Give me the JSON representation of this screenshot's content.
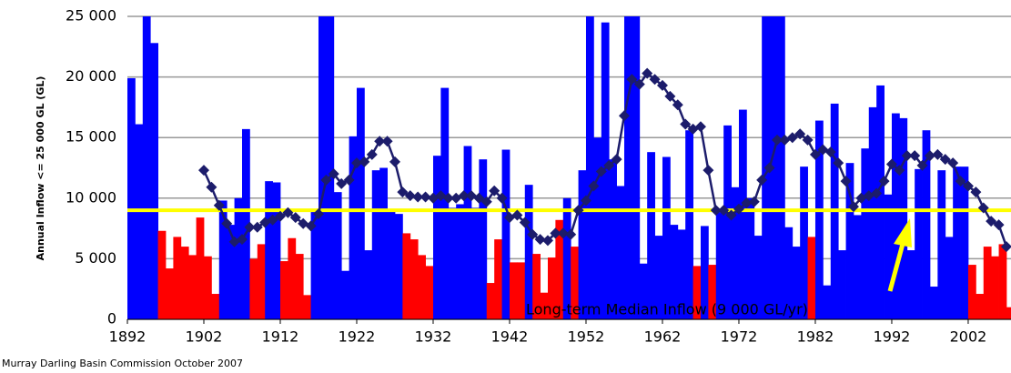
{
  "chart_data": {
    "type": "combo",
    "y_label": "Annual Inflow <= 25 000 GL (GL)",
    "source": "Murray Darling Basin Commission October 2007",
    "median": 9000,
    "median_label": "Long-term Median Inflow (9 000 GL/yr)",
    "median_color": "#ffff00",
    "x": [
      1892,
      1893,
      1894,
      1895,
      1896,
      1897,
      1898,
      1899,
      1900,
      1901,
      1902,
      1903,
      1904,
      1905,
      1906,
      1907,
      1908,
      1909,
      1910,
      1911,
      1912,
      1913,
      1914,
      1915,
      1916,
      1917,
      1918,
      1919,
      1920,
      1921,
      1922,
      1923,
      1924,
      1925,
      1926,
      1927,
      1928,
      1929,
      1930,
      1931,
      1932,
      1933,
      1934,
      1935,
      1936,
      1937,
      1938,
      1939,
      1940,
      1941,
      1942,
      1943,
      1944,
      1945,
      1946,
      1947,
      1948,
      1949,
      1950,
      1951,
      1952,
      1953,
      1954,
      1955,
      1956,
      1957,
      1958,
      1959,
      1960,
      1961,
      1962,
      1963,
      1964,
      1965,
      1966,
      1967,
      1968,
      1969,
      1970,
      1971,
      1972,
      1973,
      1974,
      1975,
      1976,
      1977,
      1978,
      1979,
      1980,
      1981,
      1982,
      1983,
      1984,
      1985,
      1986,
      1987,
      1988,
      1989,
      1990,
      1991,
      1992,
      1993,
      1994,
      1995,
      1996,
      1997,
      1998,
      1999,
      2000,
      2001,
      2002,
      2003,
      2004,
      2005,
      2006,
      2007
    ],
    "series": [
      {
        "type": "bar",
        "values": [
          19900,
          16100,
          25000,
          22800,
          7300,
          4200,
          6800,
          6000,
          5300,
          8400,
          5200,
          2100,
          9800,
          7800,
          10000,
          15700,
          5000,
          6200,
          11400,
          11300,
          4800,
          6700,
          5400,
          2000,
          9000,
          25000,
          25000,
          10500,
          4000,
          15100,
          19100,
          5700,
          12300,
          12500,
          9000,
          8700,
          7100,
          6600,
          5300,
          4400,
          13500,
          19100,
          9200,
          9500,
          14300,
          9200,
          13200,
          3000,
          6600,
          14000,
          4700,
          4700,
          11100,
          5400,
          2200,
          5100,
          8200,
          10000,
          6000,
          12300,
          25000,
          15000,
          24500,
          13200,
          11000,
          25000,
          25000,
          4600,
          13800,
          6900,
          13400,
          7800,
          7400,
          15600,
          4400,
          7700,
          4500,
          9000,
          16000,
          10900,
          17300,
          10000,
          6900,
          25000,
          25000,
          25000,
          7600,
          6000,
          12600,
          6800,
          16400,
          2800,
          17800,
          5700,
          12900,
          8600,
          14100,
          17500,
          19300,
          10300,
          17000,
          16600,
          5700,
          12400,
          15600,
          2700,
          12300,
          6800,
          12600,
          12600,
          4500,
          2100,
          6000,
          5200,
          6200,
          1000
        ],
        "colors": [
          "#0000ff",
          "#0000ff",
          "#0000ff",
          "#0000ff",
          "#ff0000",
          "#ff0000",
          "#ff0000",
          "#ff0000",
          "#ff0000",
          "#ff0000",
          "#ff0000",
          "#ff0000",
          "#0000ff",
          "#0000ff",
          "#0000ff",
          "#0000ff",
          "#ff0000",
          "#ff0000",
          "#0000ff",
          "#0000ff",
          "#ff0000",
          "#ff0000",
          "#ff0000",
          "#ff0000",
          "#0000ff",
          "#0000ff",
          "#0000ff",
          "#0000ff",
          "#0000ff",
          "#0000ff",
          "#0000ff",
          "#0000ff",
          "#0000ff",
          "#0000ff",
          "#0000ff",
          "#0000ff",
          "#ff0000",
          "#ff0000",
          "#ff0000",
          "#ff0000",
          "#0000ff",
          "#0000ff",
          "#0000ff",
          "#0000ff",
          "#0000ff",
          "#0000ff",
          "#0000ff",
          "#ff0000",
          "#ff0000",
          "#0000ff",
          "#ff0000",
          "#ff0000",
          "#0000ff",
          "#ff0000",
          "#ff0000",
          "#ff0000",
          "#ff0000",
          "#0000ff",
          "#ff0000",
          "#0000ff",
          "#0000ff",
          "#0000ff",
          "#0000ff",
          "#0000ff",
          "#0000ff",
          "#0000ff",
          "#0000ff",
          "#0000ff",
          "#0000ff",
          "#0000ff",
          "#0000ff",
          "#0000ff",
          "#0000ff",
          "#0000ff",
          "#ff0000",
          "#0000ff",
          "#ff0000",
          "#0000ff",
          "#0000ff",
          "#0000ff",
          "#0000ff",
          "#0000ff",
          "#0000ff",
          "#0000ff",
          "#0000ff",
          "#0000ff",
          "#0000ff",
          "#0000ff",
          "#0000ff",
          "#ff0000",
          "#0000ff",
          "#0000ff",
          "#0000ff",
          "#0000ff",
          "#0000ff",
          "#0000ff",
          "#0000ff",
          "#0000ff",
          "#0000ff",
          "#0000ff",
          "#0000ff",
          "#0000ff",
          "#0000ff",
          "#0000ff",
          "#0000ff",
          "#0000ff",
          "#0000ff",
          "#0000ff",
          "#0000ff",
          "#0000ff",
          "#ff0000",
          "#ff0000",
          "#ff0000",
          "#ff0000",
          "#ff0000",
          "#ff0000"
        ]
      },
      {
        "type": "line",
        "color": "#1c1c6b",
        "values": [
          null,
          null,
          null,
          null,
          null,
          null,
          null,
          null,
          null,
          null,
          12300,
          10900,
          9400,
          7900,
          6400,
          6600,
          7600,
          7600,
          8000,
          8200,
          8500,
          8800,
          8400,
          7900,
          7700,
          8700,
          11500,
          12000,
          11200,
          11500,
          12900,
          13000,
          13600,
          14700,
          14700,
          13000,
          10500,
          10200,
          10100,
          10100,
          10000,
          10200,
          10000,
          10000,
          10200,
          10200,
          10000,
          9700,
          10600,
          10000,
          8400,
          8600,
          8000,
          7000,
          6600,
          6500,
          7100,
          7100,
          7000,
          9000,
          9800,
          11000,
          12200,
          12700,
          13200,
          16800,
          19800,
          19400,
          20300,
          19800,
          19300,
          18400,
          17700,
          16100,
          15700,
          15900,
          12300,
          9000,
          9000,
          8600,
          9100,
          9600,
          9700,
          11500,
          12500,
          14800,
          14800,
          15000,
          15300,
          14800,
          13600,
          14000,
          13800,
          12900,
          11400,
          9300,
          10000,
          10200,
          10400,
          11400,
          12800,
          12300,
          13500,
          13500,
          12700,
          13500,
          13600,
          13200,
          12900,
          11400,
          11000,
          10500,
          9200,
          8100,
          7800,
          6000
        ]
      }
    ],
    "xlim": [
      1892,
      2007.6
    ],
    "xticks": [
      1892,
      1902,
      1912,
      1922,
      1932,
      1942,
      1952,
      1962,
      1972,
      1982,
      1992,
      2002
    ],
    "ylim": [
      0,
      25000
    ],
    "yticks": [
      0,
      {
        "value": 5000,
        "label": "5 000"
      },
      {
        "value": 10000,
        "label": "10 000"
      },
      {
        "value": 15000,
        "label": "15 000"
      },
      {
        "value": 20000,
        "label": "20 000"
      },
      {
        "value": 25000,
        "label": "25 000"
      }
    ],
    "grid": true
  }
}
